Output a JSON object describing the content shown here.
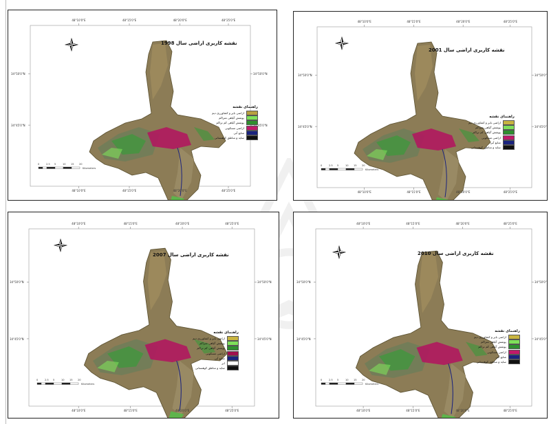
{
  "maps": [
    {
      "id": "m1998",
      "title": "نقشه کاربری اراضی سال 1998",
      "legend_title": "راهنمای نقشه",
      "top_ticks": [
        "48°10'0\"E",
        "48°15'0\"E",
        "48°20'0\"E",
        "48°25'0\"E"
      ],
      "bottom_ticks": [
        "48°10'0\"E",
        "48°15'0\"E",
        "48°20'0\"E",
        "48°25'0\"E"
      ],
      "left_ticks": [
        "34°50'0\"N",
        "34°45'0\"N"
      ],
      "right_ticks": [
        "34°50'0\"N",
        "34°45'0\"N"
      ],
      "scale_labels": [
        "0",
        "2.5",
        "5",
        "10",
        "15",
        "20"
      ],
      "scale_unit": "Kilometers",
      "legend_items": [
        {
          "label": "اراضی بایر و کشاورزی دیم",
          "color": "#b8a040"
        },
        {
          "label": "پوشش گیاهی متراکم",
          "color": "#7fe05a"
        },
        {
          "label": "پوشش گیاهی کم تراکم",
          "color": "#2f8f2f"
        },
        {
          "label": "اراضی مسکونی",
          "color": "#c0196a"
        },
        {
          "label": "منابع آبی",
          "color": "#1a237e"
        },
        {
          "label": "سایه و مناطق کوهستانی",
          "color": "#111111"
        }
      ]
    },
    {
      "id": "m2001",
      "title": "نقشه کاربری اراضی سال 2001",
      "legend_title": "راهنمای نقشه",
      "top_ticks": [
        "48°10'0\"E",
        "48°15'0\"E",
        "48°20'0\"E",
        "48°25'0\"E"
      ],
      "bottom_ticks": [
        "48°10'0\"E",
        "48°15'0\"E",
        "48°20'0\"E",
        "48°25'0\"E"
      ],
      "left_ticks": [
        "34°50'0\"N",
        "34°45'0\"N"
      ],
      "right_ticks": [
        "34°50'0\"N",
        "34°45'0\"N"
      ],
      "scale_labels": [
        "0",
        "2.5",
        "5",
        "10",
        "15",
        "20"
      ],
      "scale_unit": "Kilometers",
      "legend_items": [
        {
          "label": "اراضی بایر و کشاورزی دیم",
          "color": "#c8b440"
        },
        {
          "label": "پوشش گیاهی متراکم",
          "color": "#7fe05a"
        },
        {
          "label": "پوشش گیاهی کم تراکم",
          "color": "#2f8f2f"
        },
        {
          "label": "اراضی مسکونی",
          "color": "#c0196a"
        },
        {
          "label": "منابع آبی",
          "color": "#1a237e"
        },
        {
          "label": "سایه و مناطق کوهستانی",
          "color": "#111111"
        }
      ]
    },
    {
      "id": "m2007",
      "title": "نقشه کاربری اراضی سال 2007",
      "legend_title": "راهنمای نقشه",
      "top_ticks": [
        "48°10'0\"E",
        "48°15'0\"E",
        "48°20'0\"E",
        "48°25'0\"E"
      ],
      "bottom_ticks": [
        "48°10'0\"E",
        "48°15'0\"E",
        "48°20'0\"E",
        "48°25'0\"E"
      ],
      "left_ticks": [
        "34°50'0\"N",
        "34°45'0\"N"
      ],
      "right_ticks": [
        "34°50'0\"N",
        "34°45'0\"N"
      ],
      "scale_labels": [
        "0",
        "2.5",
        "5",
        "10",
        "15",
        "20"
      ],
      "scale_unit": "Kilometers",
      "legend_items": [
        {
          "label": "اراضی بایر و کشاورزی دیم",
          "color": "#c8b440"
        },
        {
          "label": "پوشش گیاهی متراکم",
          "color": "#7fe05a"
        },
        {
          "label": "پوشش گیاهی کم تراکم",
          "color": "#2f8f2f"
        },
        {
          "label": "اراضی مسکونی",
          "color": "#a0104e"
        },
        {
          "label": "منابع آبی",
          "color": "#1a237e"
        },
        {
          "label": "ابر",
          "color": "#ffffff"
        },
        {
          "label": "سایه و مناطق کوهستانی",
          "color": "#111111"
        }
      ]
    },
    {
      "id": "m2010",
      "title": "نقشه کاربری اراضی سال 2010",
      "legend_title": "راهنمای نقشه",
      "top_ticks": [
        "48°10'0\"E",
        "48°15'0\"E",
        "48°20'0\"E",
        "48°25'0\"E"
      ],
      "bottom_ticks": [
        "48°10'0\"E",
        "48°15'0\"E",
        "48°20'0\"E",
        "48°25'0\"E"
      ],
      "left_ticks": [
        "34°50'0\"N",
        "34°45'0\"N"
      ],
      "right_ticks": [
        "34°50'0\"N",
        "34°45'0\"N"
      ],
      "scale_labels": [
        "0",
        "2.5",
        "5",
        "10",
        "15",
        "20"
      ],
      "scale_unit": "Kilometers",
      "legend_items": [
        {
          "label": "اراضی بایر و کشاورزی دیم",
          "color": "#c8b440"
        },
        {
          "label": "پوشش گیاهی متراکم",
          "color": "#7fe05a"
        },
        {
          "label": "پوشش گیاهی کم تراکم",
          "color": "#2f8f2f"
        },
        {
          "label": "اراضی مسکونی",
          "color": "#c0196a"
        },
        {
          "label": "منابع آبی",
          "color": "#1a237e"
        },
        {
          "label": "سایه و مناطق کوهستانی",
          "color": "#111111"
        }
      ]
    }
  ]
}
